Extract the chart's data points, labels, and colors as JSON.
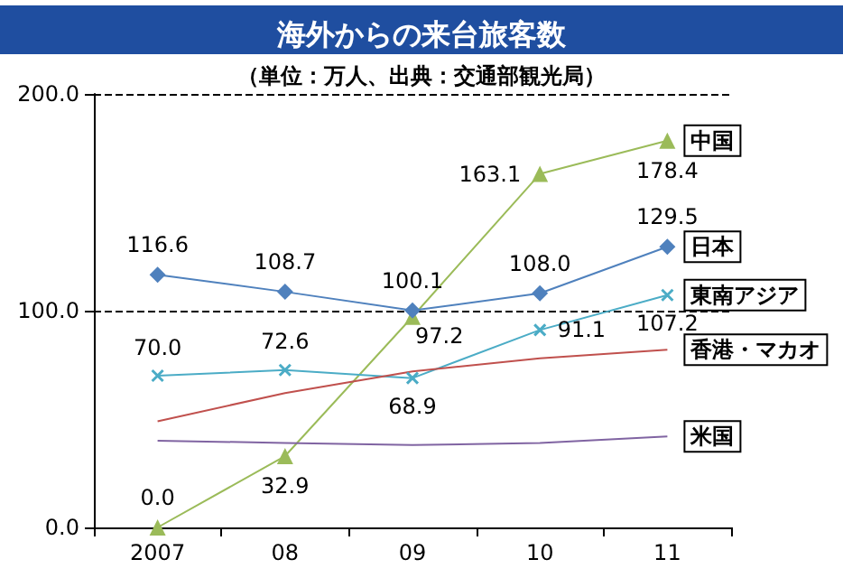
{
  "chart_data": {
    "type": "line",
    "title": "海外からの来台旅客数",
    "subtitle": "（単位：万人、出典：交通部観光局）",
    "categories": [
      "2007",
      "08",
      "09",
      "10",
      "11"
    ],
    "series": [
      {
        "name": "中国",
        "color": "#9bbb59",
        "marker": "triangle",
        "values": [
          0.0,
          32.9,
          97.2,
          163.1,
          178.4
        ],
        "value_labels": [
          "0.0",
          "32.9",
          "97.2",
          "163.1",
          "178.4"
        ]
      },
      {
        "name": "日本",
        "color": "#4f81bd",
        "marker": "diamond",
        "values": [
          116.6,
          108.7,
          100.1,
          108.0,
          129.5
        ],
        "value_labels": [
          "116.6",
          "108.7",
          "100.1",
          "108.0",
          "129.5"
        ]
      },
      {
        "name": "東南アジア",
        "color": "#4bacc6",
        "marker": "cross",
        "values": [
          70.0,
          72.6,
          68.9,
          91.1,
          107.2
        ],
        "value_labels": [
          "70.0",
          "72.6",
          "68.9",
          "91.1",
          "107.2"
        ]
      },
      {
        "name": "香港・マカオ",
        "color": "#c0504d",
        "marker": "none",
        "values": [
          49,
          62,
          72,
          78,
          82
        ]
      },
      {
        "name": "米国",
        "color": "#8064a2",
        "marker": "none",
        "values": [
          40,
          39,
          38,
          39,
          42
        ]
      }
    ],
    "ylim": [
      0,
      200
    ],
    "yticks": [
      {
        "value": 0,
        "label": "0.0"
      },
      {
        "value": 100,
        "label": "100.0"
      },
      {
        "value": 200,
        "label": "200.0"
      }
    ],
    "grid": "y",
    "legend": false
  }
}
